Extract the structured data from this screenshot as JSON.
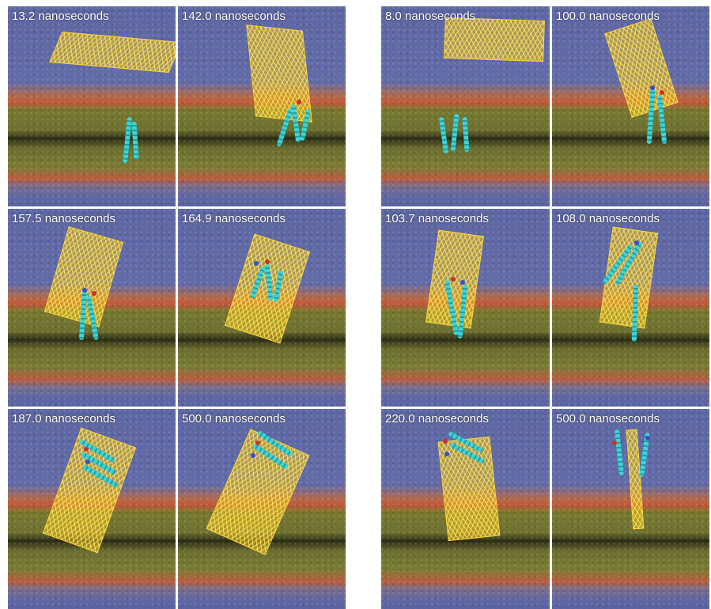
{
  "left_group": {
    "panels": [
      {
        "time_label": "13.2 nanoseconds"
      },
      {
        "time_label": "142.0 nanoseconds"
      },
      {
        "time_label": "157.5 nanoseconds"
      },
      {
        "time_label": "164.9 nanoseconds"
      },
      {
        "time_label": "187.0 nanoseconds"
      },
      {
        "time_label": "500.0 nanoseconds"
      }
    ]
  },
  "right_group": {
    "panels": [
      {
        "time_label": "8.0 nanoseconds"
      },
      {
        "time_label": "100.0 nanoseconds"
      },
      {
        "time_label": "103.7 nanoseconds"
      },
      {
        "time_label": "108.0 nanoseconds"
      },
      {
        "time_label": "220.0 nanoseconds"
      },
      {
        "time_label": "500.0 nanoseconds"
      }
    ]
  },
  "colors": {
    "water": "#5e67a3",
    "lipid_tails": "#77792f",
    "headgroups": "#c2573a",
    "graphene_sheet": "#e8be28",
    "peptide": "#3fd4d4"
  }
}
